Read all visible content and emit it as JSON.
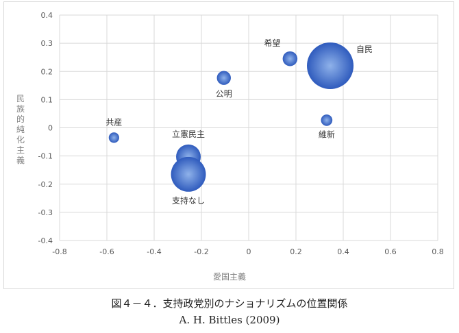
{
  "caption": {
    "title": "図４－４．支持政党別のナショナリズムの位置関係",
    "source": "A. H. Bittles (2009)"
  },
  "colors": {
    "bubble_light": "#8fb2ea",
    "bubble_dark": "#2f5bbd",
    "grid": "#d9d9d9"
  },
  "chart_data": {
    "type": "scatter",
    "variant": "bubble",
    "xlabel": "愛国主義",
    "ylabel": "民族的純化主義",
    "xlim": [
      -0.8,
      0.8
    ],
    "ylim": [
      -0.4,
      0.4
    ],
    "x_ticks": [
      -0.8,
      -0.6,
      -0.4,
      -0.2,
      0,
      0.2,
      0.4,
      0.6,
      0.8
    ],
    "y_ticks": [
      -0.4,
      -0.3,
      -0.2,
      -0.1,
      0,
      0.1,
      0.2,
      0.3,
      0.4
    ],
    "x_tick_labels": [
      "-0.8",
      "-0.6",
      "-0.4",
      "-0.2",
      "0",
      "0.2",
      "0.4",
      "0.6",
      "0.8"
    ],
    "y_tick_labels": [
      "-0.4",
      "-0.3",
      "-0.2",
      "-0.1",
      "0",
      "0.1",
      "0.2",
      "0.3",
      "0.4"
    ],
    "grid": true,
    "legend": "none",
    "points": [
      {
        "label": "自民",
        "x": 0.345,
        "y": 0.22,
        "size": 10,
        "label_pos": "right"
      },
      {
        "label": "希望",
        "x": 0.175,
        "y": 0.245,
        "size": 1.0,
        "label_pos": "top-left"
      },
      {
        "label": "公明",
        "x": -0.105,
        "y": 0.177,
        "size": 0.9,
        "label_pos": "below"
      },
      {
        "label": "維新",
        "x": 0.33,
        "y": 0.027,
        "size": 0.6,
        "label_pos": "below"
      },
      {
        "label": "共産",
        "x": -0.57,
        "y": -0.035,
        "size": 0.5,
        "label_pos": "above"
      },
      {
        "label": "立憲民主",
        "x": -0.255,
        "y": -0.103,
        "size": 2.8,
        "label_pos": "above"
      },
      {
        "label": "支持なし",
        "x": -0.255,
        "y": -0.165,
        "size": 5.6,
        "label_pos": "below"
      }
    ]
  }
}
